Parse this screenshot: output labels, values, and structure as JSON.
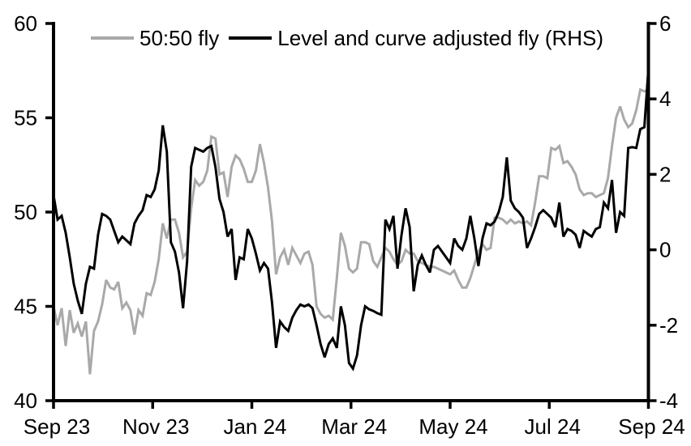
{
  "background": "#ffffff",
  "legend": {
    "items": [
      {
        "label": "50:50 fly",
        "color": "#a9a9a9"
      },
      {
        "label": "Level and curve adjusted fly (RHS)",
        "color": "#000000"
      }
    ]
  },
  "chart_data": {
    "type": "line",
    "title": "",
    "xlabel": "",
    "ylabel": "",
    "grid": false,
    "legend_position": "top",
    "x_axis": {
      "tick_labels": [
        "Sep 23",
        "Nov 23",
        "Jan 24",
        "Mar 24",
        "May 24",
        "Jul 24",
        "Sep 24"
      ]
    },
    "left_axis": {
      "range": [
        40,
        60
      ],
      "ticks": [
        40,
        45,
        50,
        55,
        60
      ]
    },
    "right_axis": {
      "range": [
        -4,
        6
      ],
      "ticks": [
        -4,
        -2,
        0,
        2,
        4,
        6
      ]
    },
    "axis_color": "#000000",
    "series": [
      {
        "name": "50:50 fly",
        "axis": "left",
        "color": "#a9a9a9",
        "stroke_width": 3,
        "values": [
          45.0,
          44.0,
          44.9,
          42.9,
          44.8,
          43.6,
          44.1,
          43.4,
          44.2,
          41.4,
          43.7,
          44.2,
          45.1,
          46.4,
          46.0,
          45.9,
          46.3,
          44.9,
          45.2,
          44.8,
          43.5,
          44.8,
          44.5,
          45.7,
          45.6,
          46.3,
          47.5,
          49.4,
          48.6,
          49.6,
          49.6,
          48.9,
          47.6,
          47.9,
          50.2,
          51.7,
          51.4,
          51.6,
          52.2,
          54.0,
          53.9,
          52.0,
          52.1,
          50.8,
          52.4,
          53.0,
          52.8,
          52.3,
          51.6,
          51.6,
          52.2,
          53.6,
          52.6,
          51.3,
          49.5,
          46.7,
          47.6,
          48.0,
          47.2,
          48.1,
          47.7,
          47.3,
          47.8,
          47.9,
          47.2,
          45.0,
          44.6,
          44.4,
          44.5,
          44.3,
          46.5,
          48.9,
          48.2,
          47.0,
          46.8,
          47.0,
          48.4,
          48.4,
          48.3,
          47.4,
          47.1,
          47.6,
          48.1,
          47.9,
          47.5,
          47.2,
          47.4,
          48.0,
          47.8,
          47.8,
          47.4,
          47.3,
          47.2,
          47.1,
          47.1,
          47.0,
          46.9,
          46.8,
          46.7,
          46.9,
          46.4,
          46.0,
          46.0,
          46.5,
          47.2,
          47.9,
          48.3,
          48.0,
          48.1,
          49.7,
          49.7,
          49.6,
          49.4,
          49.6,
          49.4,
          49.5,
          49.4,
          49.5,
          49.3,
          50.5,
          51.9,
          51.9,
          51.8,
          53.4,
          53.3,
          53.5,
          52.6,
          52.7,
          52.4,
          52.0,
          51.2,
          50.9,
          51.0,
          51.0,
          50.8,
          50.9,
          51.0,
          51.8,
          53.5,
          55.0,
          55.6,
          54.9,
          54.5,
          54.7,
          55.4,
          56.5,
          56.4,
          56.5
        ]
      },
      {
        "name": "Level and curve adjusted fly (RHS)",
        "axis": "right",
        "color": "#000000",
        "stroke_width": 3,
        "values": [
          1.45,
          0.8,
          0.9,
          0.45,
          -0.2,
          -0.9,
          -1.35,
          -1.7,
          -0.9,
          -0.45,
          -0.5,
          0.4,
          0.95,
          0.9,
          0.8,
          0.5,
          0.2,
          0.35,
          0.25,
          0.15,
          0.7,
          0.9,
          1.05,
          1.45,
          1.4,
          1.6,
          2.1,
          3.3,
          2.6,
          0.2,
          -0.05,
          -0.6,
          -1.55,
          -0.3,
          2.2,
          2.7,
          2.65,
          2.6,
          2.7,
          2.75,
          2.2,
          1.35,
          1.0,
          0.35,
          0.55,
          -0.8,
          -0.2,
          -0.25,
          0.55,
          0.3,
          -0.1,
          -0.55,
          -0.35,
          -0.5,
          -1.4,
          -2.6,
          -1.9,
          -2.05,
          -2.15,
          -1.8,
          -1.6,
          -1.45,
          -1.5,
          -1.45,
          -1.55,
          -2.0,
          -2.5,
          -2.85,
          -2.5,
          -2.35,
          -2.6,
          -1.5,
          -2.0,
          -3.0,
          -3.15,
          -2.8,
          -2.0,
          -1.5,
          -1.58,
          -1.62,
          -1.68,
          -1.72,
          0.8,
          0.55,
          0.9,
          -0.5,
          0.4,
          1.1,
          0.6,
          -1.1,
          -0.4,
          -0.15,
          -0.4,
          -0.6,
          0.0,
          0.1,
          -0.05,
          -0.2,
          -0.35,
          0.3,
          0.1,
          0.0,
          0.3,
          0.9,
          0.3,
          -0.43,
          0.3,
          0.7,
          0.65,
          0.75,
          1.0,
          1.4,
          2.45,
          1.3,
          1.1,
          1.0,
          0.85,
          0.05,
          0.3,
          0.6,
          0.95,
          1.05,
          0.95,
          0.85,
          0.6,
          1.25,
          0.35,
          0.55,
          0.5,
          0.4,
          0.05,
          0.5,
          0.42,
          0.35,
          0.55,
          0.6,
          1.25,
          1.1,
          1.85,
          0.45,
          1.0,
          0.9,
          2.7,
          2.72,
          2.7,
          3.2,
          3.25,
          4.8
        ]
      }
    ]
  }
}
